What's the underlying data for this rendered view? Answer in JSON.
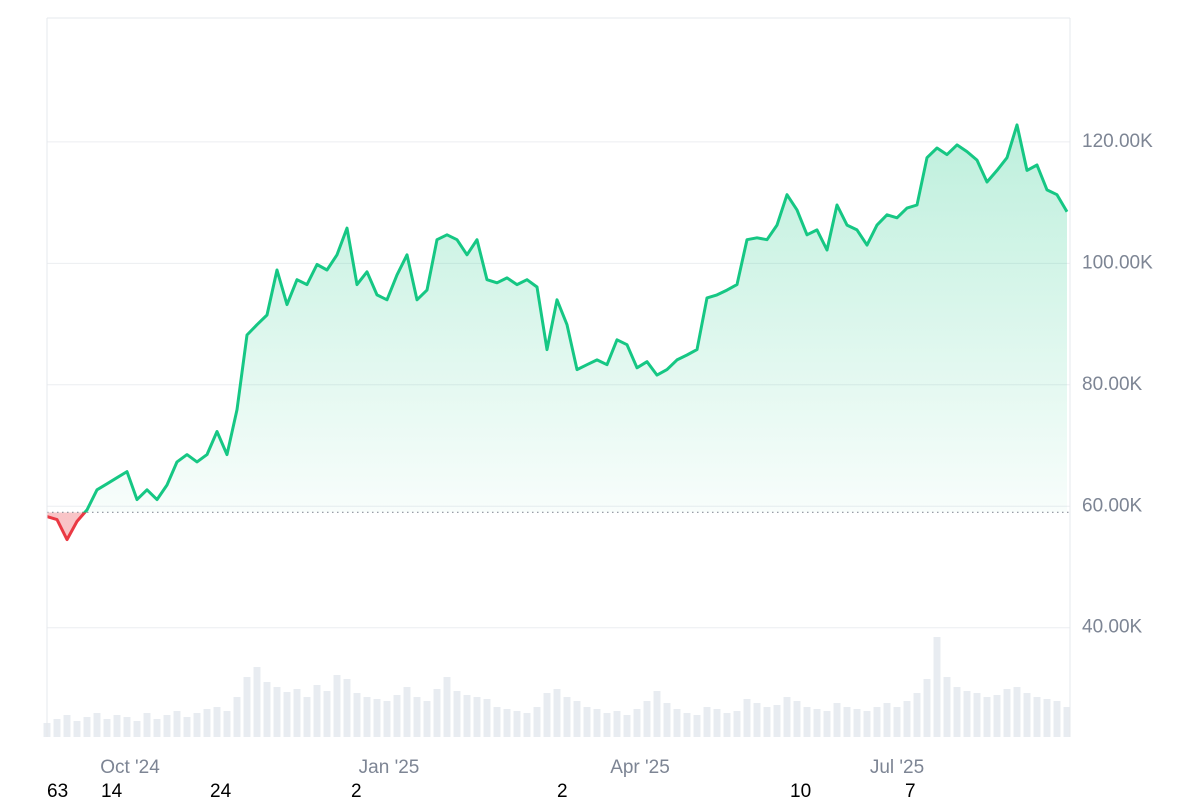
{
  "chart_data": {
    "type": "line",
    "series": [
      {
        "color": "#16c784",
        "below_color": "#ea3943",
        "values": [
          58300,
          57800,
          54500,
          57500,
          59400,
          62700,
          63700,
          64700,
          65700,
          61100,
          62700,
          61100,
          63500,
          67300,
          68500,
          67300,
          68500,
          72300,
          68500,
          75900,
          88200,
          89900,
          91500,
          98900,
          93200,
          97300,
          96500,
          99800,
          98900,
          101400,
          105800,
          96500,
          98600,
          94800,
          94000,
          98100,
          101400,
          94000,
          95600,
          103900,
          104700,
          103900,
          101400,
          103900,
          97300,
          96800,
          97600,
          96500,
          97300,
          96100,
          85800,
          94000,
          89900,
          82500,
          83300,
          84100,
          83300,
          87400,
          86600,
          82800,
          83800,
          81600,
          82500,
          84100,
          84900,
          85800,
          94300,
          94800,
          95600,
          96500,
          103900,
          104200,
          103900,
          106300,
          111300,
          108800,
          104700,
          105500,
          102200,
          109600,
          106300,
          105500,
          103000,
          106300,
          108000,
          107500,
          109100,
          109600,
          117400,
          119000,
          117900,
          119500,
          118400,
          117000,
          113400,
          115300,
          117400,
          122800,
          115300,
          116200,
          112100,
          111300,
          108500
        ]
      }
    ],
    "volume": [
      14,
      18,
      22,
      16,
      20,
      24,
      18,
      22,
      20,
      16,
      24,
      18,
      22,
      26,
      20,
      24,
      28,
      30,
      26,
      40,
      60,
      70,
      55,
      50,
      45,
      48,
      40,
      52,
      46,
      62,
      58,
      44,
      40,
      38,
      36,
      42,
      50,
      40,
      36,
      48,
      60,
      46,
      42,
      40,
      38,
      30,
      28,
      26,
      24,
      30,
      44,
      48,
      40,
      36,
      30,
      28,
      24,
      26,
      22,
      28,
      36,
      46,
      34,
      28,
      24,
      22,
      30,
      28,
      24,
      26,
      38,
      34,
      30,
      32,
      40,
      36,
      30,
      28,
      26,
      34,
      30,
      28,
      26,
      30,
      34,
      30,
      36,
      44,
      58,
      100,
      60,
      50,
      46,
      44,
      40,
      42,
      48,
      50,
      44,
      40,
      38,
      36,
      30
    ],
    "baseline": 59000,
    "xlim": [
      0,
      102.3
    ],
    "xticks": [
      {
        "value": 8.3,
        "label": "Oct '24"
      },
      {
        "value": 34.2,
        "label": "Jan '25"
      },
      {
        "value": 59.3,
        "label": "Apr '25"
      },
      {
        "value": 85,
        "label": "Jul '25"
      }
    ],
    "ylim": [
      22000,
      140400
    ],
    "yticks": [
      {
        "value": 40000,
        "label": "40.00K"
      },
      {
        "value": 60000,
        "label": "60.00K"
      },
      {
        "value": 80000,
        "label": "80.00K"
      },
      {
        "value": 100000,
        "label": "100.00K"
      },
      {
        "value": 120000,
        "label": "120.00K"
      }
    ],
    "grid": true,
    "footer_labels": [
      "63",
      "14",
      "24",
      "2",
      "2",
      "10",
      "7"
    ]
  }
}
